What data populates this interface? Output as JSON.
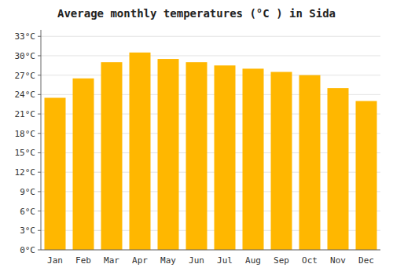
{
  "chart_data": {
    "type": "bar",
    "title": "Average monthly temperatures (°C ) in Sida",
    "categories": [
      "Jan",
      "Feb",
      "Mar",
      "Apr",
      "May",
      "Jun",
      "Jul",
      "Aug",
      "Sep",
      "Oct",
      "Nov",
      "Dec"
    ],
    "values": [
      23.5,
      26.5,
      29.0,
      30.5,
      29.5,
      29.0,
      28.5,
      28.0,
      27.5,
      27.0,
      25.0,
      23.0
    ],
    "color": "#FFB700",
    "ylim": [
      0,
      34
    ],
    "yticks": [
      {
        "value": 0,
        "label": "0°C"
      },
      {
        "value": 3,
        "label": "3°C"
      },
      {
        "value": 6,
        "label": "6°C"
      },
      {
        "value": 9,
        "label": "9°C"
      },
      {
        "value": 12,
        "label": "12°C"
      },
      {
        "value": 15,
        "label": "15°C"
      },
      {
        "value": 18,
        "label": "18°C"
      },
      {
        "value": 21,
        "label": "21°C"
      },
      {
        "value": 24,
        "label": "24°C"
      },
      {
        "value": 27,
        "label": "27°C"
      },
      {
        "value": 30,
        "label": "30°C"
      },
      {
        "value": 33,
        "label": "33°C"
      }
    ],
    "grid": true
  }
}
